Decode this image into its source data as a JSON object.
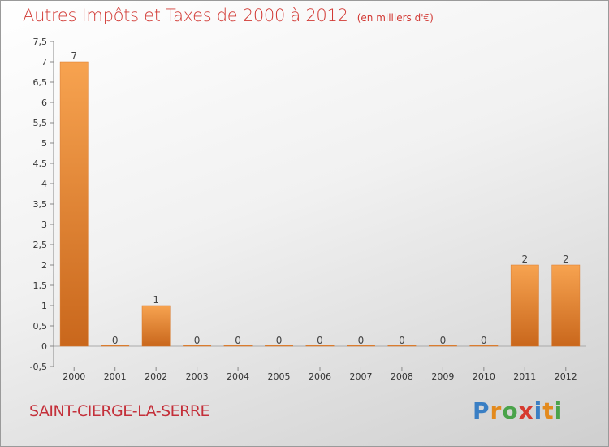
{
  "header": {
    "title": "Autres Impôts et Taxes de 2000 à 2012",
    "unit": "(en milliers d'€)"
  },
  "footer": {
    "commune": "SAINT-CIERGE-LA-SERRE",
    "logo": {
      "letters": [
        "P",
        "r",
        "o",
        "x",
        "i",
        "t",
        "i"
      ],
      "colors": [
        "#3a7fc4",
        "#e38a1d",
        "#4aa34a",
        "#d63a2f",
        "#3a7fc4",
        "#e38a1d",
        "#4aa34a"
      ]
    }
  },
  "chart_data": {
    "type": "bar",
    "categories": [
      "2000",
      "2001",
      "2002",
      "2003",
      "2004",
      "2005",
      "2006",
      "2007",
      "2008",
      "2009",
      "2010",
      "2011",
      "2012"
    ],
    "values": [
      7,
      0,
      1,
      0,
      0,
      0,
      0,
      0,
      0,
      0,
      0,
      2,
      2
    ],
    "value_labels": [
      "7",
      "0",
      "1",
      "0",
      "0",
      "0",
      "0",
      "0",
      "0",
      "0",
      "0",
      "2",
      "2"
    ],
    "ylim": [
      -0.5,
      7.5
    ],
    "yticks": [
      "-0,5",
      "0",
      "0,5",
      "1",
      "1,5",
      "2",
      "2,5",
      "3",
      "3,5",
      "4",
      "4,5",
      "5",
      "5,5",
      "6",
      "6,5",
      "7",
      "7,5"
    ],
    "ytick_values": [
      -0.5,
      0,
      0.5,
      1,
      1.5,
      2,
      2.5,
      3,
      3.5,
      4,
      4.5,
      5,
      5.5,
      6,
      6.5,
      7,
      7.5
    ],
    "grid": false,
    "bar_color_top": "#f7a350",
    "bar_color_bottom": "#c9671c"
  }
}
